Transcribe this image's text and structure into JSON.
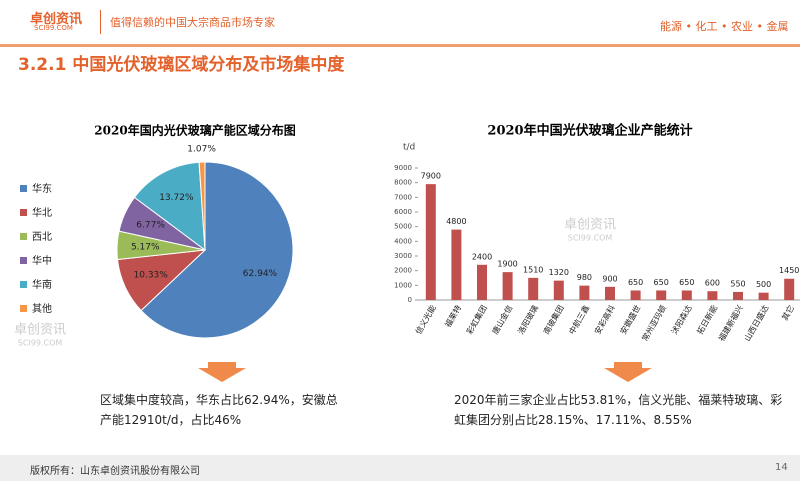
{
  "header": {
    "logo": "卓创资讯",
    "logo_site": "SCI99.COM",
    "tagline": "值得信赖的中国大宗商品市场专家",
    "nav": [
      "能源",
      "化工",
      "农业",
      "金属"
    ]
  },
  "section_title": "3.2.1 中国光伏玻璃区域分布及市场集中度",
  "watermark": {
    "name": "卓创资讯",
    "site": "SCI99.COM"
  },
  "chart_data": [
    {
      "type": "pie",
      "title": "2020年国内光伏玻璃产能区域分布图",
      "categories": [
        "华东",
        "华北",
        "西北",
        "华中",
        "华南",
        "其他"
      ],
      "values": [
        62.94,
        10.33,
        5.17,
        6.77,
        13.72,
        1.07
      ],
      "value_labels": [
        "62.94%",
        "10.33%",
        "5.17%",
        "6.77%",
        "13.72%",
        "1.07%"
      ],
      "colors": [
        "#4f81bd",
        "#c0504d",
        "#9bbb59",
        "#8064a2",
        "#4bacc6",
        "#f79646"
      ],
      "legend": "left"
    },
    {
      "type": "bar",
      "title": "2020年中国光伏玻璃企业产能统计",
      "y_label": "t/d",
      "categories": [
        "信义光能",
        "福莱特",
        "彩虹集团",
        "唐山金信",
        "洛阳玻璃",
        "南玻集团",
        "中航三鑫",
        "安彩高科",
        "安徽盛世",
        "常州亚玛顿",
        "沭阳森达",
        "拓日新能",
        "福建新福兴",
        "山西日盛达",
        "其它"
      ],
      "values": [
        7900,
        4800,
        2400,
        1900,
        1510,
        1320,
        980,
        900,
        650,
        650,
        650,
        600,
        550,
        500,
        1450
      ],
      "color": "#c0504d",
      "ylim": [
        0,
        9000
      ],
      "yticks": [
        0,
        1000,
        2000,
        3000,
        4000,
        5000,
        6000,
        7000,
        8000,
        9000
      ],
      "grid": false
    }
  ],
  "notes": [
    "区域集中度较高，华东占比62.94%，安徽总产能12910t/d，占比46%",
    "2020年前三家企业占比53.81%，信义光能、福莱特玻璃、彩虹集团分别占比28.15%、17.11%、8.55%"
  ],
  "footer": {
    "copyright": "版权所有：山东卓创资讯股份有限公司",
    "page": "14"
  }
}
